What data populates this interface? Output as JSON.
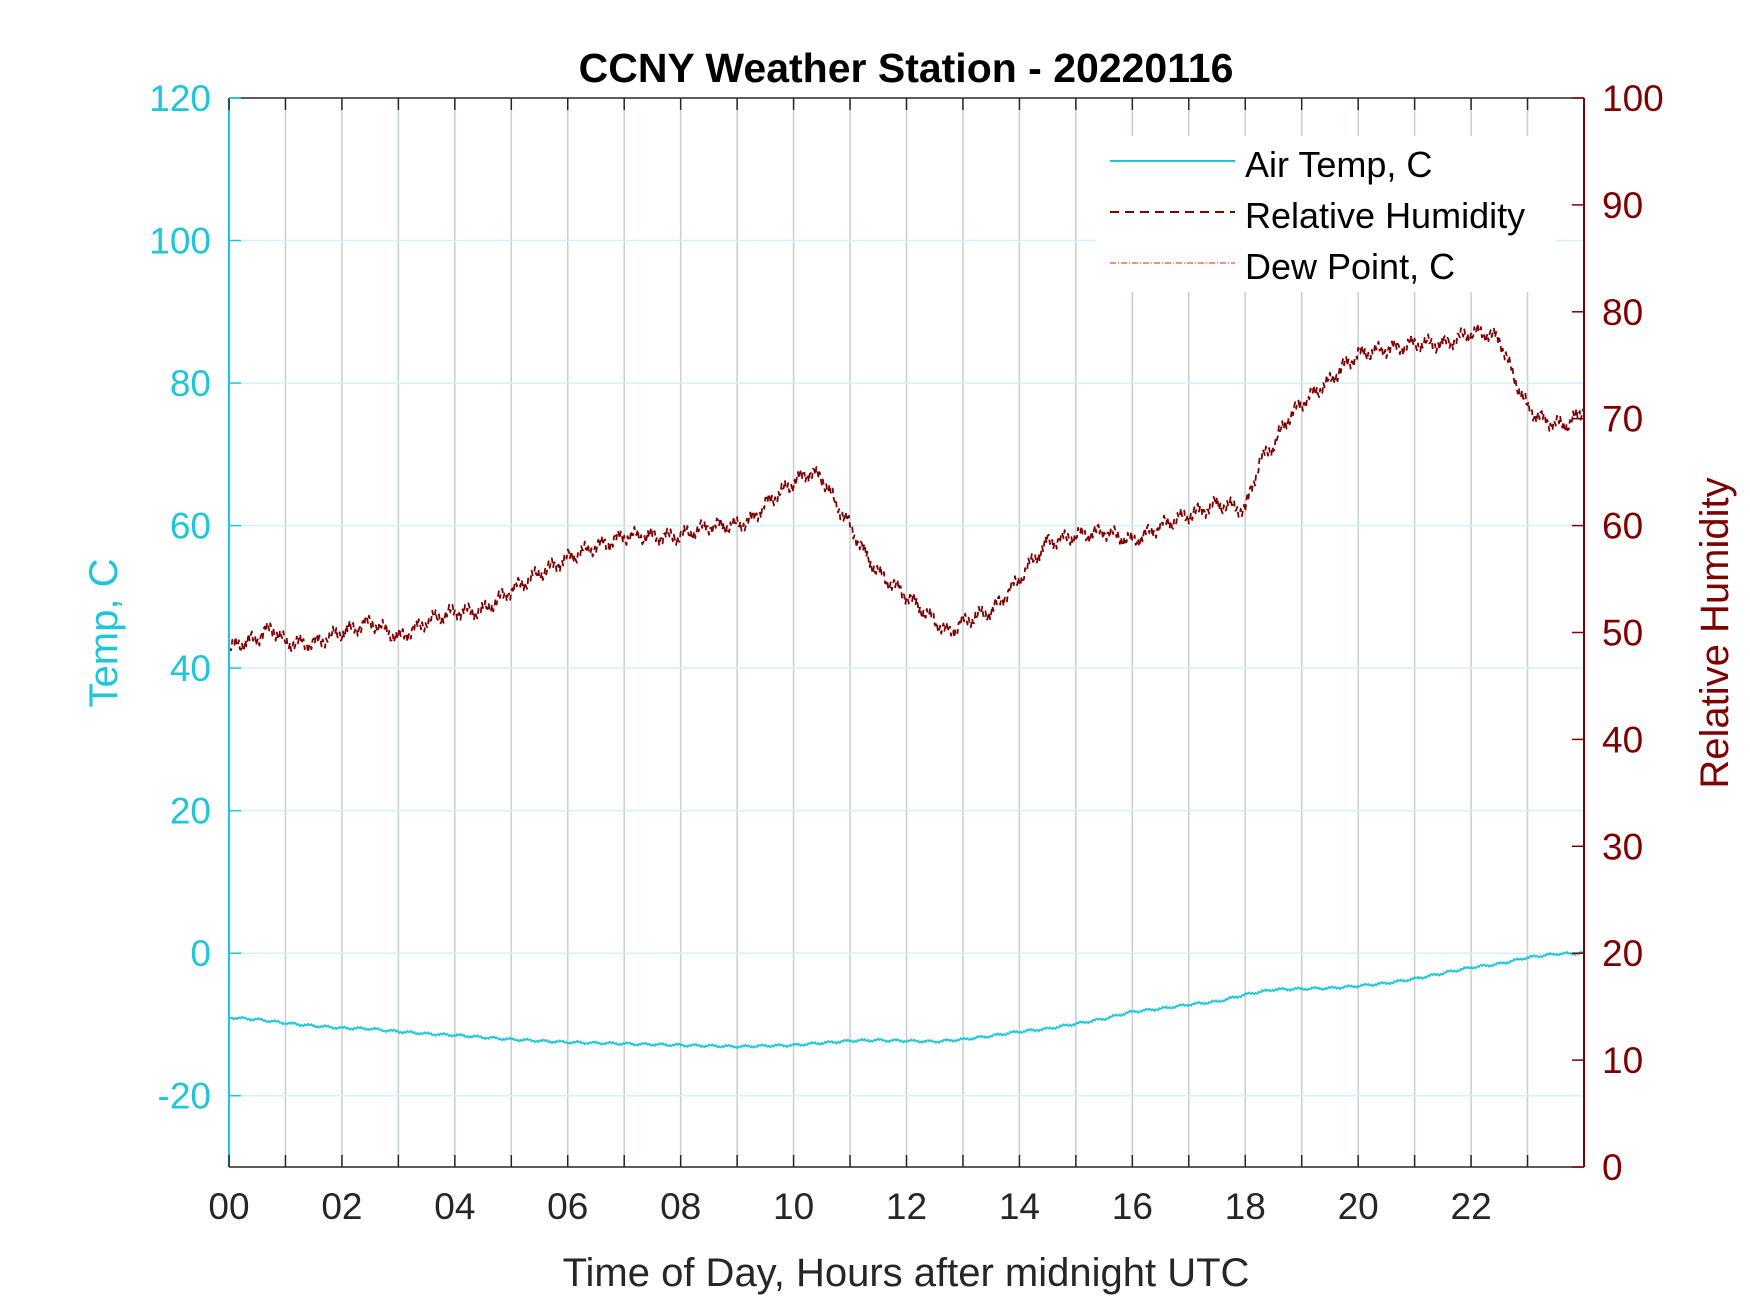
{
  "chart_data": {
    "type": "line",
    "title": "CCNY Weather Station - 20220116",
    "xlabel": "Time of Day, Hours after midnight UTC",
    "ylabel_left": "Temp, C",
    "ylabel_right": "Relative Humidity",
    "xlim": [
      0,
      24
    ],
    "ylim_left": [
      -30,
      120
    ],
    "ylim_right": [
      0,
      100
    ],
    "x_ticks": [
      0,
      2,
      4,
      6,
      8,
      10,
      12,
      14,
      16,
      18,
      20,
      22
    ],
    "x_tick_labels": [
      "00",
      "02",
      "04",
      "06",
      "08",
      "10",
      "12",
      "14",
      "16",
      "18",
      "20",
      "22"
    ],
    "y_left_ticks": [
      -20,
      0,
      20,
      40,
      60,
      80,
      100,
      120
    ],
    "y_left_tick_labels": [
      "-20",
      "0",
      "20",
      "40",
      "60",
      "80",
      "100",
      "120"
    ],
    "y_right_ticks": [
      0,
      10,
      20,
      30,
      40,
      50,
      60,
      70,
      80,
      90,
      100
    ],
    "y_right_tick_labels": [
      "0",
      "10",
      "20",
      "30",
      "40",
      "50",
      "60",
      "70",
      "80",
      "90",
      "100"
    ],
    "grid": true,
    "legend_position": "top-right",
    "colors": {
      "left_axis": "#1ec6d9",
      "right_axis": "#7f0000",
      "dew_point": "#ff6a4d",
      "text": "#262626",
      "vgrid": "#c8ced6",
      "hgrid": "#d2f2f7"
    },
    "series": [
      {
        "name": "Air Temp, C",
        "axis": "left",
        "style": "solid",
        "x": [
          0,
          0.5,
          1,
          1.5,
          2,
          2.5,
          3,
          3.5,
          4,
          4.5,
          5,
          5.5,
          6,
          6.5,
          7,
          7.5,
          8,
          8.5,
          9,
          9.5,
          10,
          10.5,
          11,
          11.5,
          12,
          12.5,
          13,
          13.5,
          14,
          14.5,
          15,
          15.5,
          16,
          16.5,
          17,
          17.5,
          18,
          18.5,
          19,
          19.5,
          20,
          20.5,
          21,
          21.5,
          22,
          22.5,
          23,
          23.5,
          24
        ],
        "y": [
          -9,
          -9.3,
          -9.8,
          -10.2,
          -10.5,
          -10.6,
          -11,
          -11.3,
          -11.5,
          -11.8,
          -12.1,
          -12.3,
          -12.5,
          -12.6,
          -12.7,
          -12.8,
          -12.9,
          -13,
          -13.1,
          -13,
          -12.9,
          -12.6,
          -12.3,
          -12.2,
          -12.3,
          -12.4,
          -12.1,
          -11.6,
          -11,
          -10.6,
          -9.9,
          -9.2,
          -8.2,
          -7.8,
          -7.2,
          -6.8,
          -5.8,
          -5.1,
          -5,
          -4.9,
          -4.6,
          -4.2,
          -3.6,
          -2.8,
          -2,
          -1.5,
          -0.6,
          -0.1,
          0
        ]
      },
      {
        "name": "Relative Humidity",
        "axis": "right",
        "style": "dashed",
        "x": [
          0,
          0.25,
          0.5,
          0.75,
          1,
          1.5,
          2,
          2.5,
          3,
          3.5,
          4,
          4.5,
          5,
          5.5,
          6,
          6.5,
          7,
          7.5,
          8,
          8.5,
          9,
          9.25,
          9.5,
          9.75,
          10,
          10.25,
          10.5,
          10.75,
          11,
          11.25,
          11.5,
          12,
          12.5,
          12.75,
          13,
          13.5,
          14,
          14.5,
          15,
          15.5,
          16,
          16.5,
          17,
          17.5,
          18,
          18.25,
          18.5,
          18.75,
          19,
          19.25,
          19.5,
          19.75,
          20,
          20.5,
          21,
          21.5,
          22,
          22.25,
          22.5,
          22.75,
          23,
          23.25,
          23.5,
          23.75,
          24
        ],
        "y": [
          48.5,
          49,
          49.5,
          50.5,
          49,
          49,
          50,
          51,
          49.5,
          51,
          52,
          52,
          54,
          55.5,
          57,
          58,
          59,
          59,
          59,
          60,
          60,
          60.5,
          62,
          63,
          64,
          65,
          64.5,
          62,
          60,
          57.5,
          55.5,
          53.5,
          51,
          50,
          51,
          52,
          55,
          58.5,
          59,
          59.5,
          58.5,
          60,
          61,
          62,
          61.5,
          66,
          67.5,
          70,
          71.5,
          72.5,
          73.5,
          75,
          76,
          76.5,
          77,
          77,
          78,
          78,
          77.5,
          74,
          71,
          70,
          69.5,
          69.5,
          71
        ]
      },
      {
        "name": "Dew Point, C",
        "axis": "left",
        "style": "dash-dot",
        "x": [],
        "y": []
      }
    ]
  }
}
